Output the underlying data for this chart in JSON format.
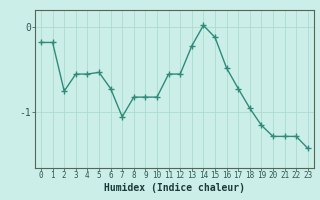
{
  "x": [
    0,
    1,
    2,
    3,
    4,
    5,
    6,
    7,
    8,
    9,
    10,
    11,
    12,
    13,
    14,
    15,
    16,
    17,
    18,
    19,
    20,
    21,
    22,
    23
  ],
  "y": [
    -0.18,
    -0.18,
    -0.75,
    -0.55,
    -0.55,
    -0.53,
    -0.72,
    -1.05,
    -0.82,
    -0.82,
    -0.82,
    -0.55,
    -0.55,
    -0.22,
    0.02,
    -0.12,
    -0.48,
    -0.72,
    -0.95,
    -1.15,
    -1.28,
    -1.28,
    -1.28,
    -1.42
  ],
  "line_color": "#2e8b7a",
  "marker": "+",
  "marker_size": 4,
  "marker_linewidth": 1.0,
  "line_width": 1.0,
  "xlabel": "Humidex (Indice chaleur)",
  "xlim": [
    -0.5,
    23.5
  ],
  "ylim": [
    -1.65,
    0.2
  ],
  "yticks": [
    -1,
    0
  ],
  "bg_color": "#cceee8",
  "grid_color": "#aaddcc",
  "fig_bg": "#cceee8",
  "xlabel_fontsize": 7,
  "xtick_fontsize": 5.5,
  "ytick_fontsize": 7,
  "xlabel_color": "#1a3a3a",
  "tick_color": "#2e5a5a"
}
